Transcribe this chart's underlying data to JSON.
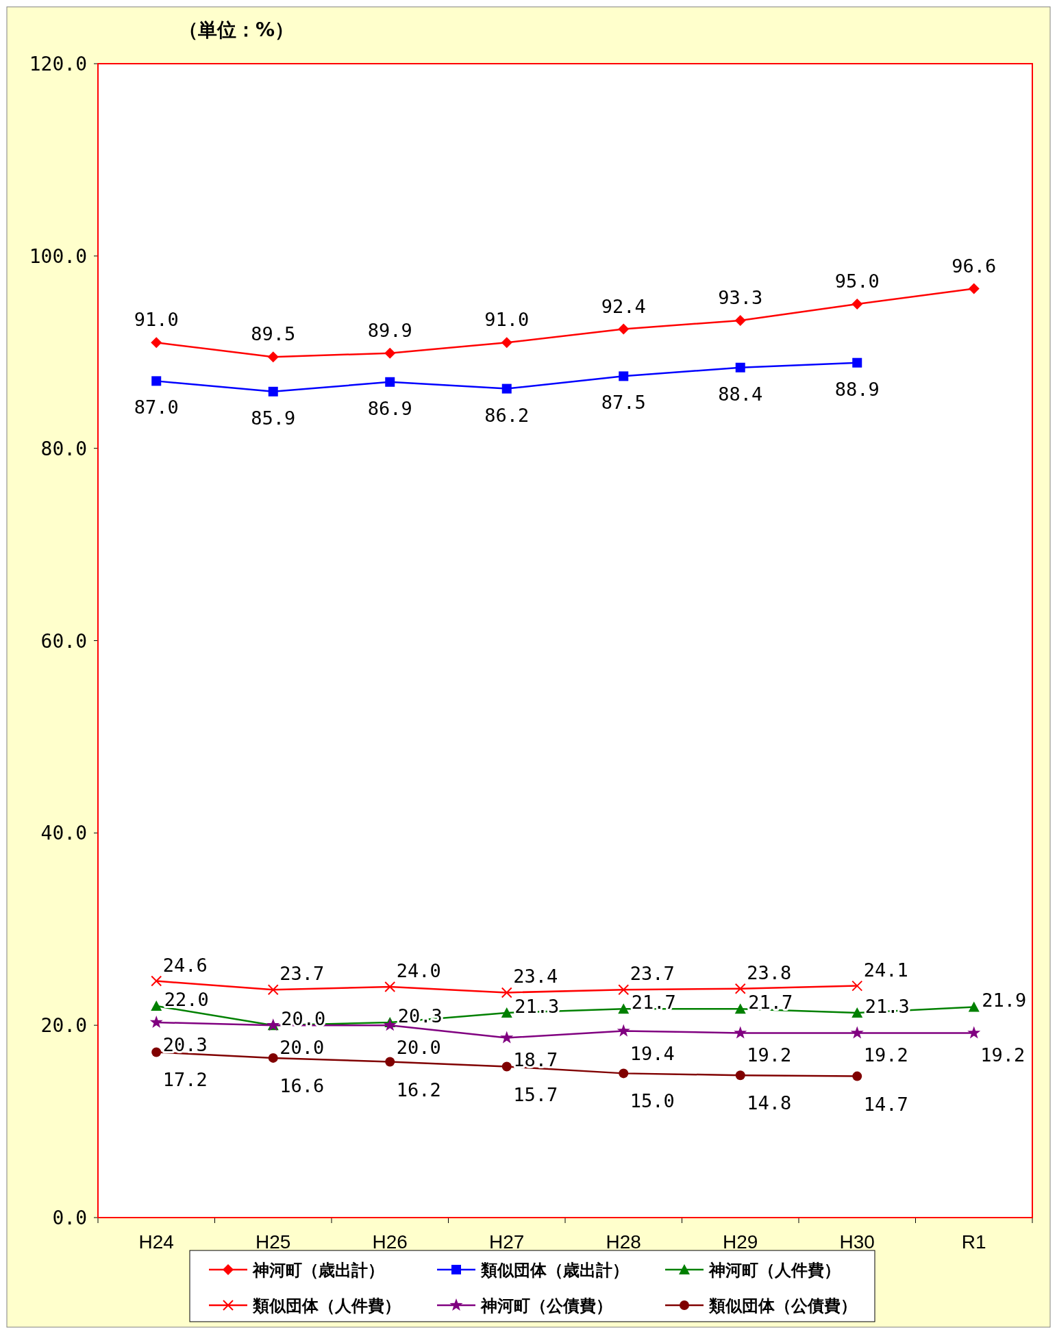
{
  "chart_data": {
    "type": "line",
    "ylabel": "（単位：%）",
    "categories": [
      "H24",
      "H25",
      "H26",
      "H27",
      "H28",
      "H29",
      "H30",
      "R1"
    ],
    "ylim": [
      0,
      120
    ],
    "yticks": [
      {
        "value": 0,
        "label": "0.0"
      },
      {
        "value": 20,
        "label": "20.0"
      },
      {
        "value": 40,
        "label": "40.0"
      },
      {
        "value": 60,
        "label": "60.0"
      },
      {
        "value": 80,
        "label": "80.0"
      },
      {
        "value": 100,
        "label": "100.0"
      },
      {
        "value": 120,
        "label": "120.0"
      }
    ],
    "grid": false,
    "legend": "bottom",
    "series": [
      {
        "name": "神河町（歳出計）",
        "color": "#ff0000",
        "marker": "diamond",
        "values": [
          91.0,
          89.5,
          89.9,
          91.0,
          92.4,
          93.3,
          95.0,
          96.6
        ],
        "value_labels": [
          "91.0",
          "89.5",
          "89.9",
          "91.0",
          "92.4",
          "93.3",
          "95.0",
          "96.6"
        ]
      },
      {
        "name": "類似団体（歳出計）",
        "color": "#0000ff",
        "marker": "square",
        "values": [
          87.0,
          85.9,
          86.9,
          86.2,
          87.5,
          88.4,
          88.9,
          null
        ],
        "value_labels": [
          "87.0",
          "85.9",
          "86.9",
          "86.2",
          "87.5",
          "88.4",
          "88.9",
          null
        ]
      },
      {
        "name": "神河町（人件費）",
        "color": "#008000",
        "marker": "triangle",
        "values": [
          22.0,
          20.0,
          20.3,
          21.3,
          21.7,
          21.7,
          21.3,
          21.9
        ],
        "value_labels": [
          "22.0",
          "20.0",
          "20.3",
          "21.3",
          "21.7",
          "21.7",
          "21.3",
          "21.9"
        ]
      },
      {
        "name": "類似団体（人件費）",
        "color": "#ff0000",
        "marker": "cross",
        "values": [
          24.6,
          23.7,
          24.0,
          23.4,
          23.7,
          23.8,
          24.1,
          null
        ],
        "value_labels": [
          "24.6",
          "23.7",
          "24.0",
          "23.4",
          "23.7",
          "23.8",
          "24.1",
          null
        ]
      },
      {
        "name": "神河町（公債費）",
        "color": "#800080",
        "marker": "star",
        "values": [
          20.3,
          20.0,
          20.0,
          18.7,
          19.4,
          19.2,
          19.2,
          19.2
        ],
        "value_labels": [
          "20.3",
          "20.0",
          "20.0",
          "18.7",
          "19.4",
          "19.2",
          "19.2",
          "19.2"
        ]
      },
      {
        "name": "類似団体（公債費）",
        "color": "#800000",
        "marker": "circle",
        "values": [
          17.2,
          16.6,
          16.2,
          15.7,
          15.0,
          14.8,
          14.7,
          null
        ],
        "value_labels": [
          "17.2",
          "16.6",
          "16.2",
          "15.7",
          "15.0",
          "14.8",
          "14.7",
          null
        ]
      }
    ]
  }
}
